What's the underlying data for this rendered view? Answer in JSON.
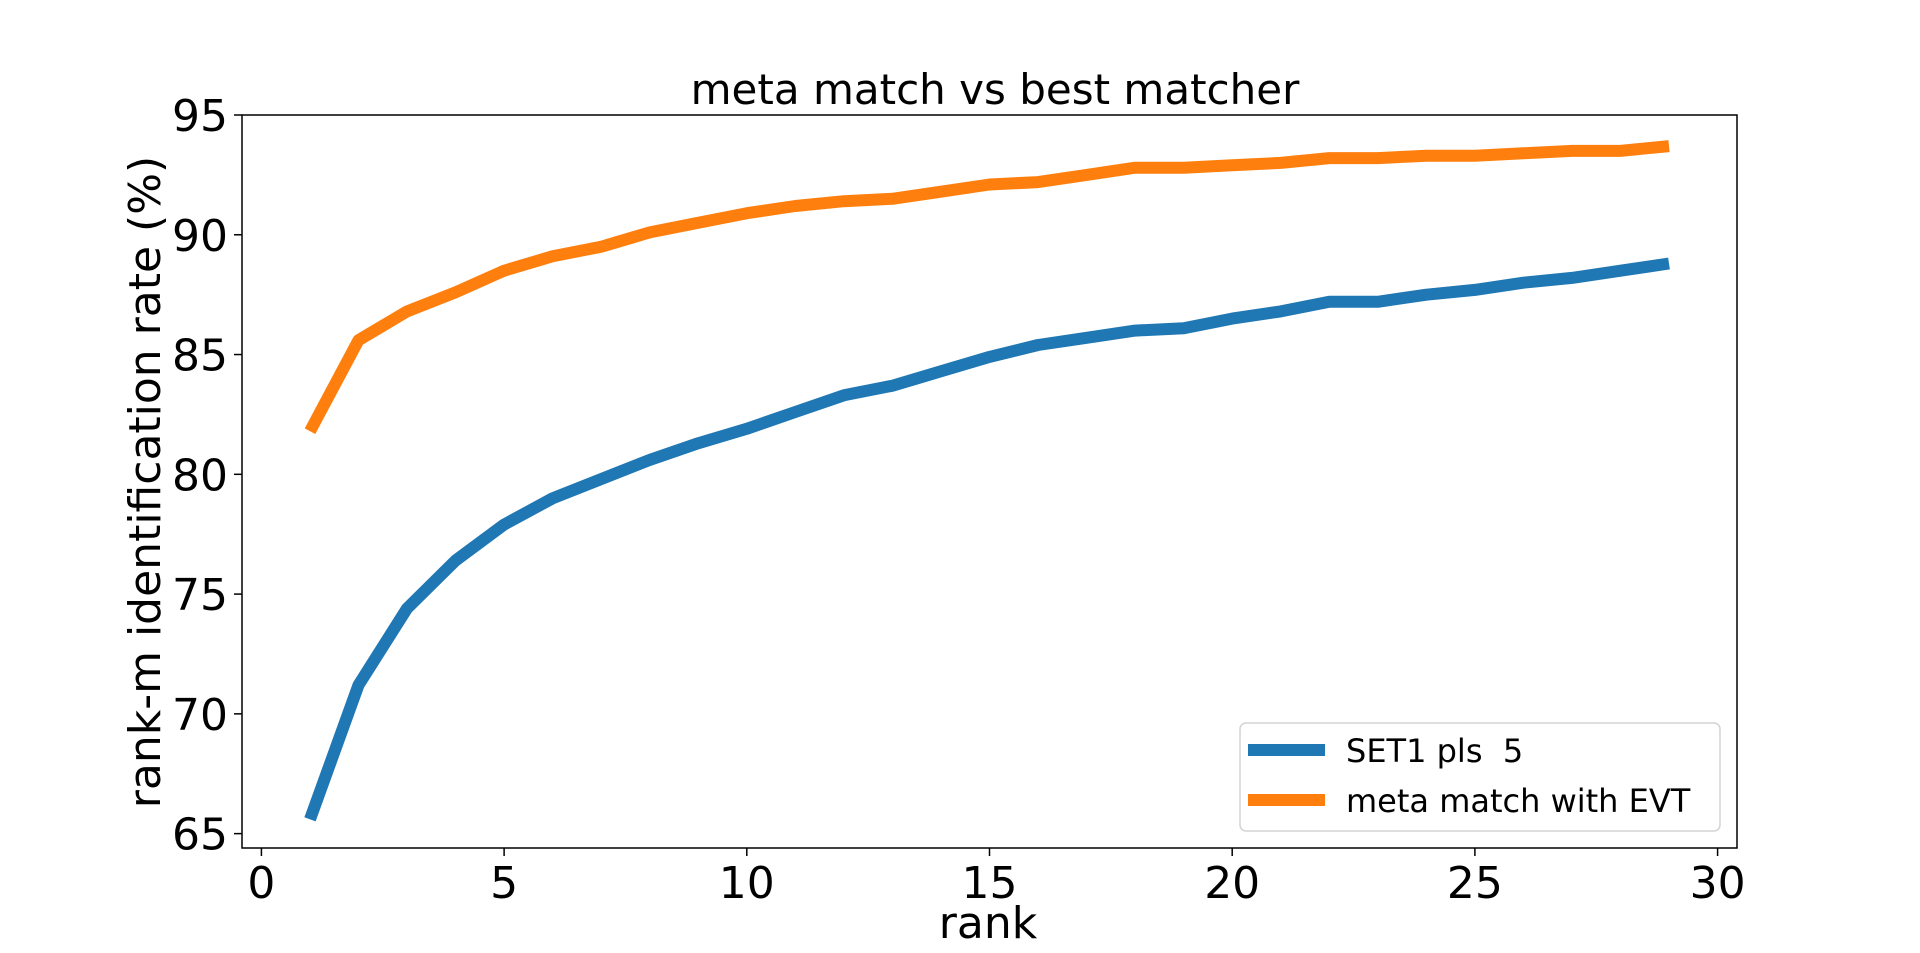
{
  "chart_data": {
    "type": "line",
    "title": "meta match vs best matcher",
    "xlabel": "rank",
    "ylabel": "rank-m identification rate (%)",
    "xlim": [
      -0.4,
      30.4
    ],
    "ylim": [
      64.4,
      95
    ],
    "xticks": [
      0,
      5,
      10,
      15,
      20,
      25,
      30
    ],
    "yticks": [
      65,
      70,
      75,
      80,
      85,
      90,
      95
    ],
    "grid": false,
    "legend_position": "lower right",
    "x": [
      1,
      2,
      3,
      4,
      5,
      6,
      7,
      8,
      9,
      10,
      11,
      12,
      13,
      14,
      15,
      16,
      17,
      18,
      19,
      20,
      21,
      22,
      23,
      24,
      25,
      26,
      27,
      28,
      29
    ],
    "series": [
      {
        "name": "SET1 pls  5",
        "color": "#1f77b4",
        "values": [
          65.6,
          71.2,
          74.4,
          76.4,
          77.9,
          79.0,
          79.8,
          80.6,
          81.3,
          81.9,
          82.6,
          83.3,
          83.7,
          84.3,
          84.9,
          85.4,
          85.7,
          86.0,
          86.1,
          86.5,
          86.8,
          87.2,
          87.2,
          87.5,
          87.7,
          88.0,
          88.2,
          88.5,
          88.8
        ]
      },
      {
        "name": "meta match with EVT",
        "color": "#ff7f0e",
        "values": [
          81.8,
          85.6,
          86.8,
          87.6,
          88.5,
          89.1,
          89.5,
          90.1,
          90.5,
          90.9,
          91.2,
          91.4,
          91.5,
          91.8,
          92.1,
          92.2,
          92.5,
          92.8,
          92.8,
          92.9,
          93.0,
          93.2,
          93.2,
          93.3,
          93.3,
          93.4,
          93.5,
          93.5,
          93.7
        ]
      }
    ]
  }
}
